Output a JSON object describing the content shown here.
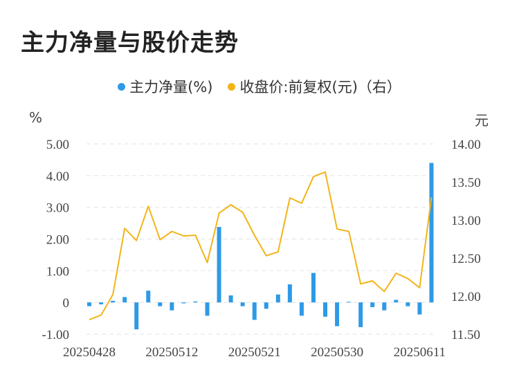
{
  "title": "主力净量与股价走势",
  "legend": [
    {
      "label": "主力净量(%)",
      "color": "#2e9ae6"
    },
    {
      "label": "收盘价:前复权(元)（右）",
      "color": "#f2b418"
    }
  ],
  "chart_data": {
    "type": "bar+line",
    "left_axis": {
      "unit": "%",
      "ticks": [
        "5.00",
        "4.00",
        "3.00",
        "2.00",
        "1.00",
        "0",
        "-1.00"
      ],
      "range": [
        -1,
        5
      ]
    },
    "right_axis": {
      "unit": "元",
      "ticks": [
        "14.00",
        "13.50",
        "13.00",
        "12.50",
        "12.00",
        "11.50"
      ],
      "range": [
        11.5,
        14
      ]
    },
    "x_tick_labels": [
      "20250428",
      "20250512",
      "20250521",
      "20250530",
      "20250611"
    ],
    "x_tick_index": [
      0,
      7,
      14,
      21,
      28
    ],
    "series": [
      {
        "name": "主力净量(%)",
        "type": "bar",
        "color": "#2e9ae6",
        "values": [
          -0.12,
          -0.06,
          0.05,
          0.17,
          -0.85,
          0.37,
          -0.12,
          -0.25,
          -0.03,
          0.03,
          -0.42,
          2.38,
          0.22,
          -0.12,
          -0.55,
          -0.2,
          0.25,
          0.57,
          -0.42,
          0.93,
          -0.45,
          -0.75,
          0.02,
          -0.78,
          -0.15,
          -0.25,
          0.08,
          -0.12,
          -0.38,
          4.4
        ]
      },
      {
        "name": "收盘价:前复权(元)（右）",
        "type": "line",
        "color": "#f2b418",
        "values": [
          11.69,
          11.75,
          12.02,
          12.89,
          12.73,
          13.18,
          12.74,
          12.85,
          12.79,
          12.8,
          12.44,
          13.09,
          13.2,
          13.1,
          12.8,
          12.53,
          12.58,
          13.29,
          13.22,
          13.57,
          13.63,
          12.88,
          12.85,
          12.16,
          12.2,
          12.06,
          12.3,
          12.23,
          12.11,
          13.3
        ]
      }
    ]
  }
}
